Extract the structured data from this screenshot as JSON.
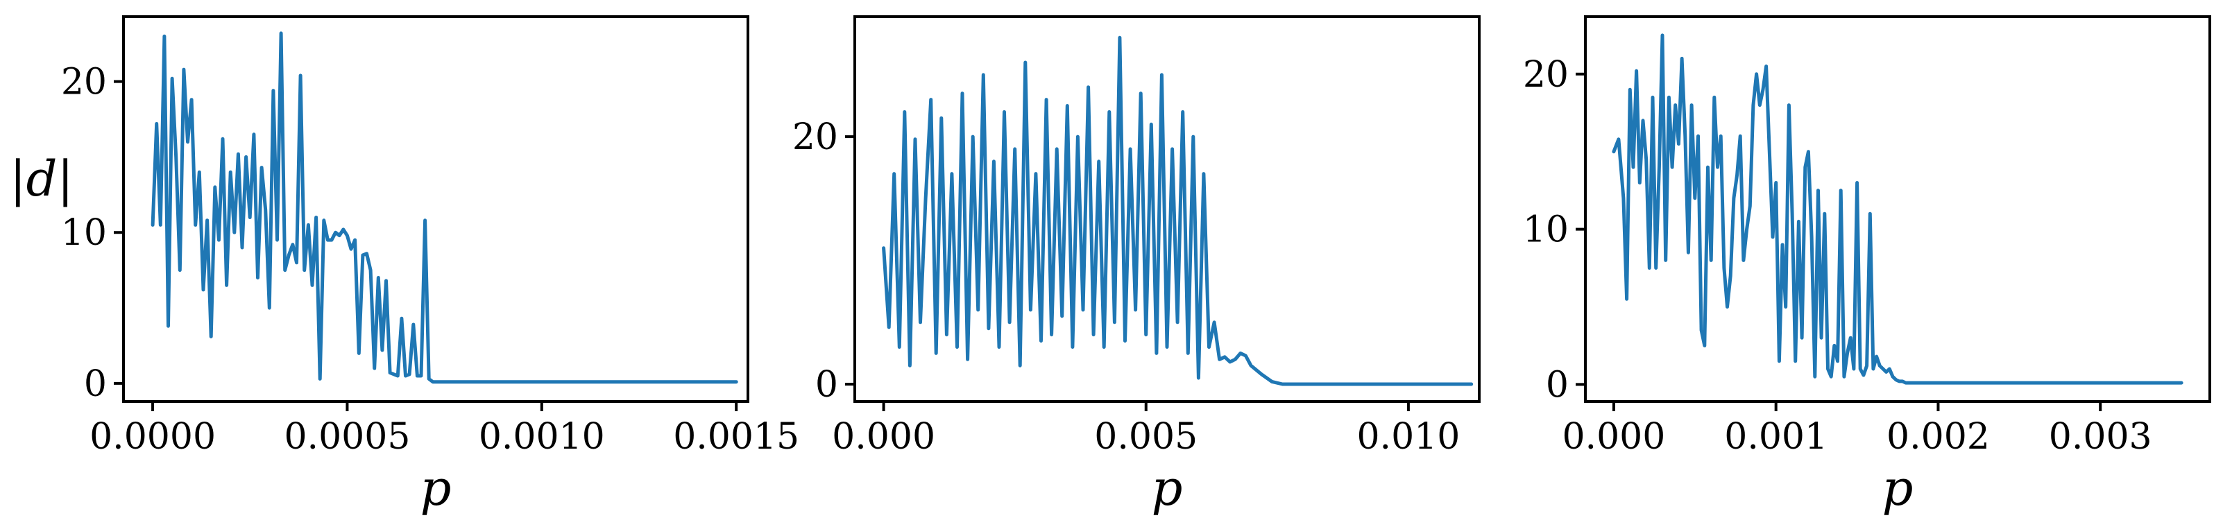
{
  "line_color": "#1f77b4",
  "chart_data": [
    {
      "type": "line",
      "xlabel": "p",
      "ylabel": "|d|",
      "xlim": [
        -7.5e-05,
        0.00153
      ],
      "ylim": [
        -1.2,
        24.3
      ],
      "xticks": [
        0.0,
        0.0005,
        0.001,
        0.0015
      ],
      "xtick_labels": [
        "0.0000",
        "0.0005",
        "0.0010",
        "0.0015"
      ],
      "yticks": [
        0,
        10,
        20
      ],
      "ytick_labels": [
        "0",
        "10",
        "20"
      ],
      "grid": false,
      "x": [
        0.0,
        1e-05,
        2e-05,
        3e-05,
        4e-05,
        5e-05,
        6e-05,
        7e-05,
        8e-05,
        9e-05,
        0.0001,
        0.00011,
        0.00012,
        0.00013,
        0.00014,
        0.00015,
        0.00016,
        0.00017,
        0.00018,
        0.00019,
        0.0002,
        0.00021,
        0.00022,
        0.00023,
        0.00024,
        0.00025,
        0.00026,
        0.00027,
        0.00028,
        0.00029,
        0.0003,
        0.00031,
        0.00032,
        0.00033,
        0.00034,
        0.00035,
        0.00036,
        0.00037,
        0.00038,
        0.00039,
        0.0004,
        0.00041,
        0.00042,
        0.00043,
        0.00044,
        0.00045,
        0.00046,
        0.00047,
        0.00048,
        0.00049,
        0.0005,
        0.00051,
        0.00052,
        0.00053,
        0.00054,
        0.00055,
        0.00056,
        0.00057,
        0.00058,
        0.00059,
        0.0006,
        0.00061,
        0.00062,
        0.00063,
        0.00064,
        0.00065,
        0.00066,
        0.00067,
        0.00068,
        0.00069,
        0.0007,
        0.00071,
        0.00072,
        0.00073,
        0.00074,
        0.00075,
        0.00076,
        0.00077,
        0.00078,
        0.00079,
        0.0008,
        0.00081,
        0.00082,
        0.00083,
        0.00084,
        0.00085,
        0.00086,
        0.00087,
        0.00088,
        0.00089,
        0.0009,
        0.001,
        0.0011,
        0.0012,
        0.0013,
        0.0014,
        0.0015
      ],
      "y": [
        10.5,
        17.2,
        10.5,
        23.0,
        3.8,
        20.2,
        15.0,
        7.5,
        20.8,
        16.0,
        18.8,
        10.5,
        14.0,
        6.2,
        10.8,
        3.1,
        13.0,
        9.5,
        16.2,
        6.5,
        14.0,
        10.0,
        15.2,
        9.0,
        15.0,
        11.0,
        16.5,
        7.0,
        14.3,
        11.5,
        5.0,
        19.4,
        9.5,
        23.2,
        7.5,
        8.5,
        9.2,
        8.0,
        20.4,
        7.5,
        10.5,
        6.5,
        11.0,
        0.3,
        10.8,
        9.5,
        9.5,
        10.0,
        9.8,
        10.2,
        9.8,
        8.9,
        9.5,
        2.0,
        8.5,
        8.6,
        7.5,
        1.0,
        7.0,
        2.2,
        6.8,
        0.7,
        0.6,
        0.5,
        4.3,
        0.5,
        0.6,
        3.9,
        0.5,
        0.5,
        10.8,
        0.3,
        0.1,
        0.1,
        0.1,
        0.1,
        0.1,
        0.1,
        0.1,
        0.1,
        0.1,
        0.1,
        0.1,
        0.1,
        0.1,
        0.1,
        0.1,
        0.1,
        0.1,
        0.1,
        0.1,
        0.1,
        0.1,
        0.1,
        0.1,
        0.1,
        0.1
      ]
    },
    {
      "type": "line",
      "xlabel": "p",
      "ylabel": "",
      "xlim": [
        -0.00055,
        0.01135
      ],
      "ylim": [
        -1.4,
        29.7
      ],
      "xticks": [
        0.0,
        0.005,
        0.01
      ],
      "xtick_labels": [
        "0.000",
        "0.005",
        "0.010"
      ],
      "yticks": [
        0,
        20
      ],
      "ytick_labels": [
        "0",
        "20"
      ],
      "grid": false,
      "x": [
        0.0,
        0.0001,
        0.0002,
        0.0003,
        0.0004,
        0.0005,
        0.0006,
        0.0007,
        0.0008,
        0.0009,
        0.001,
        0.0011,
        0.0012,
        0.0013,
        0.0014,
        0.0015,
        0.0016,
        0.0017,
        0.0018,
        0.0019,
        0.002,
        0.0021,
        0.0022,
        0.0023,
        0.0024,
        0.0025,
        0.0026,
        0.0027,
        0.0028,
        0.0029,
        0.003,
        0.0031,
        0.0032,
        0.0033,
        0.0034,
        0.0035,
        0.0036,
        0.0037,
        0.0038,
        0.0039,
        0.004,
        0.0041,
        0.0042,
        0.0043,
        0.0044,
        0.0045,
        0.0046,
        0.0047,
        0.0048,
        0.0049,
        0.005,
        0.0051,
        0.0052,
        0.0053,
        0.0054,
        0.0055,
        0.0056,
        0.0057,
        0.0058,
        0.0059,
        0.006,
        0.0061,
        0.0062,
        0.0063,
        0.0064,
        0.0065,
        0.0066,
        0.0067,
        0.0068,
        0.0069,
        0.007,
        0.0072,
        0.0074,
        0.0076,
        0.008,
        0.009,
        0.01,
        0.0112
      ],
      "y": [
        11.0,
        4.6,
        17.0,
        3.0,
        22.0,
        1.5,
        19.8,
        5.0,
        15.0,
        23.0,
        2.5,
        21.5,
        4.0,
        17.0,
        3.0,
        23.5,
        2.0,
        20.0,
        6.0,
        25.0,
        4.5,
        18.0,
        3.0,
        22.0,
        5.0,
        19.0,
        1.5,
        26.0,
        6.0,
        17.0,
        3.5,
        23.0,
        4.0,
        19.0,
        5.5,
        22.5,
        3.0,
        20.0,
        6.0,
        24.0,
        4.0,
        18.0,
        3.0,
        22.0,
        5.0,
        28.0,
        3.5,
        19.0,
        6.0,
        23.5,
        4.0,
        21.0,
        2.5,
        25.0,
        3.0,
        19.0,
        5.0,
        22.0,
        2.5,
        20.0,
        0.5,
        17.0,
        3.0,
        5.0,
        2.0,
        2.2,
        1.8,
        2.0,
        2.5,
        2.3,
        1.5,
        0.8,
        0.2,
        0.0,
        0.0,
        0.0,
        0.0,
        0.0
      ]
    },
    {
      "type": "line",
      "xlabel": "p",
      "ylabel": "",
      "xlim": [
        -0.000175,
        0.003675
      ],
      "ylim": [
        -1.1,
        23.7
      ],
      "xticks": [
        0.0,
        0.001,
        0.002,
        0.003
      ],
      "xtick_labels": [
        "0.000",
        "0.001",
        "0.002",
        "0.003"
      ],
      "yticks": [
        0,
        10,
        20
      ],
      "ytick_labels": [
        "0",
        "10",
        "20"
      ],
      "grid": false,
      "x": [
        0.0,
        3e-05,
        6e-05,
        8e-05,
        0.0001,
        0.00012,
        0.00014,
        0.00016,
        0.00018,
        0.0002,
        0.00022,
        0.00024,
        0.00026,
        0.00028,
        0.0003,
        0.00032,
        0.00034,
        0.00036,
        0.00038,
        0.0004,
        0.00042,
        0.00044,
        0.00046,
        0.00048,
        0.0005,
        0.00052,
        0.00054,
        0.00056,
        0.00058,
        0.0006,
        0.00062,
        0.00064,
        0.00066,
        0.00068,
        0.0007,
        0.00072,
        0.00074,
        0.00076,
        0.00078,
        0.0008,
        0.00082,
        0.00084,
        0.00086,
        0.00088,
        0.0009,
        0.00092,
        0.00094,
        0.00096,
        0.00098,
        0.001,
        0.00102,
        0.00104,
        0.00106,
        0.00108,
        0.0011,
        0.00112,
        0.00114,
        0.00116,
        0.00118,
        0.0012,
        0.00122,
        0.00124,
        0.00126,
        0.00128,
        0.0013,
        0.00132,
        0.00134,
        0.00136,
        0.00138,
        0.0014,
        0.00142,
        0.00144,
        0.00146,
        0.00148,
        0.0015,
        0.00152,
        0.00154,
        0.00156,
        0.00158,
        0.0016,
        0.00162,
        0.00164,
        0.00166,
        0.00168,
        0.0017,
        0.00172,
        0.00174,
        0.00176,
        0.00178,
        0.0018,
        0.00182,
        0.00184,
        0.00186,
        0.00188,
        0.0019,
        0.00192,
        0.00194,
        0.00196,
        0.00198,
        0.002,
        0.00202,
        0.00204,
        0.00206,
        0.0021,
        0.0022,
        0.0023,
        0.0024,
        0.0025,
        0.003,
        0.0035
      ],
      "y": [
        15.0,
        15.8,
        12.0,
        5.5,
        19.0,
        14.0,
        20.2,
        13.0,
        17.0,
        14.5,
        7.5,
        18.5,
        7.5,
        14.0,
        22.5,
        8.0,
        18.5,
        14.0,
        18.0,
        15.5,
        21.0,
        16.0,
        8.5,
        18.0,
        12.0,
        16.0,
        3.5,
        2.5,
        14.0,
        8.0,
        18.5,
        14.0,
        16.0,
        7.5,
        5.0,
        7.0,
        12.0,
        13.5,
        16.0,
        8.0,
        10.0,
        11.5,
        18.0,
        20.0,
        18.0,
        19.0,
        20.5,
        15.0,
        9.5,
        13.0,
        1.5,
        9.0,
        5.0,
        18.0,
        11.0,
        1.5,
        10.5,
        3.0,
        14.0,
        15.0,
        9.5,
        0.5,
        12.5,
        3.0,
        11.0,
        1.0,
        0.5,
        2.5,
        1.5,
        12.5,
        0.5,
        2.0,
        3.0,
        1.0,
        13.0,
        1.0,
        0.6,
        1.2,
        11.0,
        1.0,
        1.8,
        1.2,
        1.0,
        0.8,
        1.0,
        0.5,
        0.3,
        0.2,
        0.2,
        0.1,
        0.1,
        0.1,
        0.1,
        0.1,
        0.1,
        0.1,
        0.1,
        0.1,
        0.1,
        0.1,
        0.1,
        0.1,
        0.1,
        0.1,
        0.1,
        0.1,
        0.1,
        0.1,
        0.1,
        0.1
      ]
    }
  ]
}
